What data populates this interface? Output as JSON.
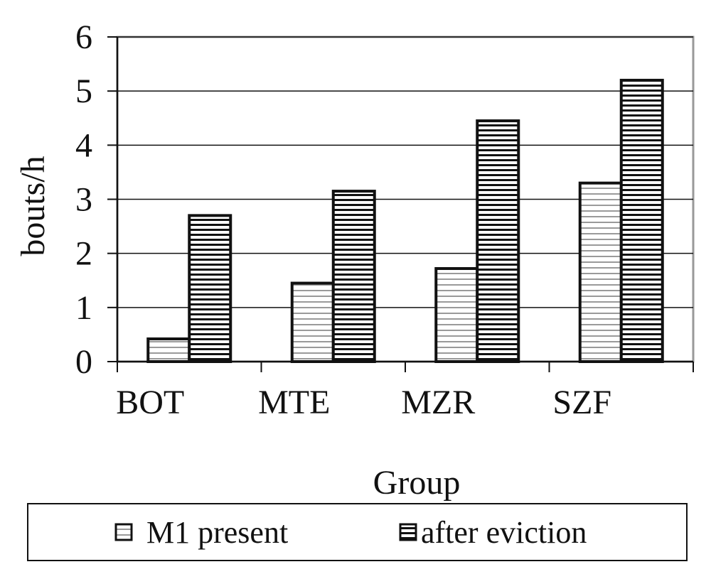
{
  "chart_data": {
    "type": "bar",
    "categories": [
      "BOT",
      "MTE",
      "MZR",
      "SZF"
    ],
    "series": [
      {
        "name": "M1 present",
        "values": [
          0.42,
          1.45,
          1.72,
          3.3
        ],
        "pattern": "light-stripes"
      },
      {
        "name": "after eviction",
        "values": [
          2.7,
          3.15,
          4.45,
          5.2
        ],
        "pattern": "dark-stripes"
      }
    ],
    "xlabel": "Group",
    "ylabel": "bouts/h",
    "ylim": [
      0,
      6
    ],
    "yticks": [
      "0",
      "1",
      "2",
      "3",
      "4",
      "5",
      "6"
    ],
    "grid": true,
    "legend_position": "bottom",
    "colors": {
      "bar_outline": "#111111",
      "light_stripe": "#9a9a9a",
      "dark_stripe": "#111111",
      "grid": "#111111",
      "frame": "#999999"
    }
  }
}
